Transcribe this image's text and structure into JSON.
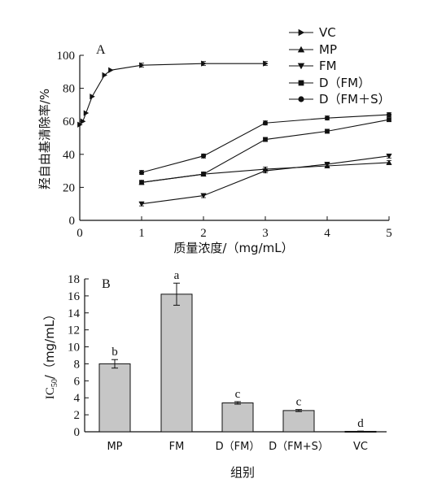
{
  "chart_data": [
    {
      "panel_label": "A",
      "type": "line",
      "ylabel": "羟自由基清除率/%",
      "xlabel": "质量浓度/（mg/mL）",
      "xlim": [
        0,
        5
      ],
      "ylim": [
        0,
        100
      ],
      "x_ticks": [
        "0",
        "1",
        "2",
        "3",
        "4",
        "5"
      ],
      "y_ticks": [
        "0",
        "20",
        "40",
        "60",
        "80",
        "100"
      ],
      "legend_position": "top-right",
      "series": [
        {
          "name": "VC",
          "marker": "triangle-right",
          "x": [
            0,
            0.05,
            0.1,
            0.2,
            0.4,
            0.5,
            1,
            2,
            3
          ],
          "y": [
            58,
            60,
            65,
            75,
            88,
            91,
            94,
            95,
            95
          ]
        },
        {
          "name": "MP",
          "marker": "triangle-up",
          "x": [
            1,
            2,
            3,
            4,
            5
          ],
          "y": [
            23,
            28,
            31,
            33,
            35
          ]
        },
        {
          "name": "FM",
          "marker": "triangle-down",
          "x": [
            1,
            2,
            3,
            4,
            5
          ],
          "y": [
            10,
            15,
            30,
            34,
            39
          ]
        },
        {
          "name": "D（FM）",
          "marker": "square",
          "x": [
            1,
            2,
            3,
            4,
            5
          ],
          "y": [
            23,
            28,
            49,
            54,
            61
          ]
        },
        {
          "name": "D（FM＋S）",
          "marker": "circle",
          "x": [
            1,
            2,
            3,
            4,
            5
          ],
          "y": [
            29,
            39,
            59,
            62,
            64
          ]
        }
      ]
    },
    {
      "panel_label": "B",
      "type": "bar",
      "ylabel_main": "IC",
      "ylabel_sub": "50",
      "ylabel_rest": "/（mg/mL）",
      "xlabel": "组别",
      "ylim": [
        0,
        18
      ],
      "y_ticks": [
        "0",
        "2",
        "4",
        "6",
        "8",
        "10",
        "12",
        "14",
        "16",
        "18"
      ],
      "categories": [
        "MP",
        "FM",
        "D（FM）",
        "D（FM+S）",
        "VC"
      ],
      "values": [
        8.0,
        16.2,
        3.4,
        2.5,
        0.05
      ],
      "errors": [
        0.5,
        1.3,
        0.15,
        0.12,
        0.03
      ],
      "significance": [
        "b",
        "a",
        "c",
        "c",
        "d"
      ],
      "bar_color": "#c6c6c6"
    }
  ]
}
